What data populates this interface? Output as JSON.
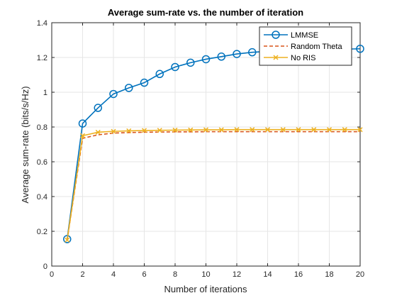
{
  "chart_data": {
    "type": "line",
    "title": "Average sum-rate vs. the number of iteration",
    "xlabel": "Number of iterations",
    "ylabel": "Average sum-rate (bits/s/Hz)",
    "xlim": [
      0,
      20
    ],
    "ylim": [
      0,
      1.4
    ],
    "xticks": [
      0,
      2,
      4,
      6,
      8,
      10,
      12,
      14,
      16,
      18,
      20
    ],
    "yticks": [
      0,
      0.2,
      0.4,
      0.6,
      0.8,
      1,
      1.2,
      1.4
    ],
    "grid": true,
    "legend_position": "top-right",
    "x": [
      1,
      2,
      3,
      4,
      5,
      6,
      7,
      8,
      9,
      10,
      11,
      12,
      13,
      14,
      15,
      16,
      17,
      18,
      19,
      20
    ],
    "series": [
      {
        "name": "LMMSE",
        "color": "#0072BD",
        "line_style": "solid",
        "marker": "circle",
        "values": [
          0.155,
          0.82,
          0.91,
          0.99,
          1.025,
          1.055,
          1.105,
          1.145,
          1.17,
          1.19,
          1.205,
          1.22,
          1.23,
          1.235,
          1.24,
          1.243,
          1.245,
          1.247,
          1.248,
          1.25
        ]
      },
      {
        "name": "Random Theta",
        "color": "#D95319",
        "line_style": "dashed",
        "marker": "none",
        "values": [
          0.15,
          0.735,
          0.755,
          0.765,
          0.768,
          0.77,
          0.771,
          0.772,
          0.772,
          0.773,
          0.773,
          0.773,
          0.773,
          0.773,
          0.773,
          0.773,
          0.773,
          0.773,
          0.773,
          0.773
        ]
      },
      {
        "name": "No RIS",
        "color": "#EDB120",
        "line_style": "solid",
        "marker": "x",
        "values": [
          0.15,
          0.75,
          0.77,
          0.775,
          0.778,
          0.78,
          0.781,
          0.782,
          0.783,
          0.784,
          0.784,
          0.785,
          0.785,
          0.785,
          0.785,
          0.785,
          0.785,
          0.785,
          0.785,
          0.785
        ]
      }
    ]
  }
}
